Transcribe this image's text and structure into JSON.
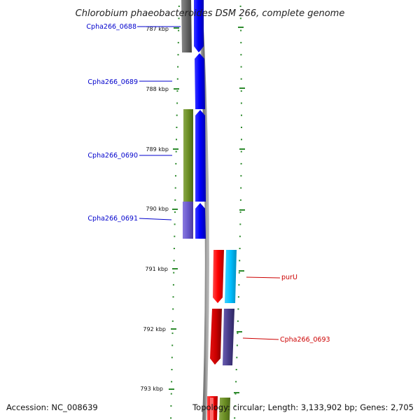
{
  "title": "Chlorobium phaeobacteroides DSM 266, complete genome",
  "accession": "Accession: NC_008639",
  "topology": "Topology: circular; Length: 3,133,902 bp; Genes: 2,705",
  "ticks": [
    {
      "label": "787 kbp"
    },
    {
      "label": "788 kbp"
    },
    {
      "label": "789 kbp"
    },
    {
      "label": "790 kbp"
    },
    {
      "label": "791 kbp"
    },
    {
      "label": "792 kbp"
    },
    {
      "label": "793 kbp"
    }
  ],
  "gene_labels": [
    {
      "name": "Cpha266_0688",
      "color": "#0000cc"
    },
    {
      "name": "Cpha266_0689",
      "color": "#0000cc"
    },
    {
      "name": "Cpha266_0690",
      "color": "#0000cc"
    },
    {
      "name": "Cpha266_0691",
      "color": "#0000cc"
    },
    {
      "name": "purU",
      "color": "#cc0000"
    },
    {
      "name": "Cpha266_0693",
      "color": "#cc0000"
    }
  ],
  "colors": {
    "forward_cds": "#0000ff",
    "reverse_cds": "#ff0000",
    "olive_feature": "#6b8e23",
    "gray_feature": "#666666",
    "slate_feature": "#6a5acd",
    "cyan_feature": "#00bfff",
    "navy_feature": "#483d8b",
    "dark_red_feature": "#cc0000",
    "tick_green": "#2e8b2e",
    "backbone": "#808080"
  }
}
